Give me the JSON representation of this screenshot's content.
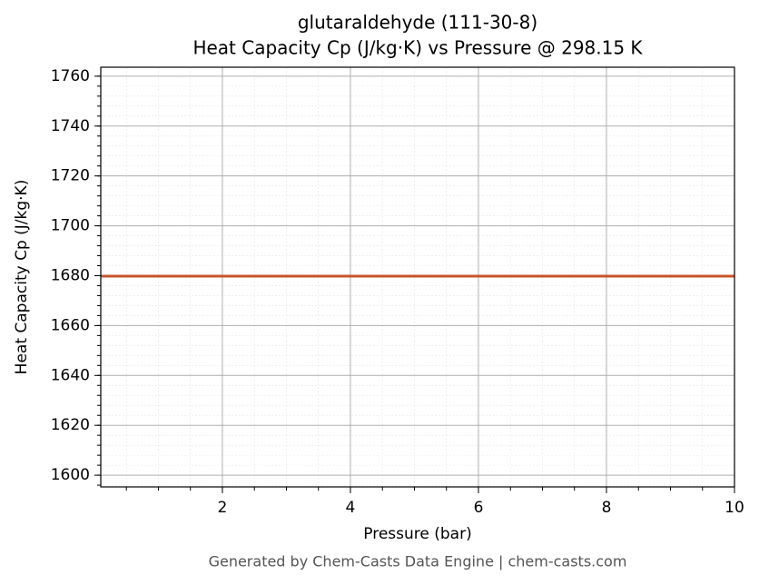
{
  "chart_data": {
    "type": "line",
    "title": "glutaraldehyde (111-30-8)",
    "subtitle": "Heat Capacity Cp (J/kg·K) vs Pressure @ 298.15 K",
    "x_label": "Pressure (bar)",
    "y_label": "Heat Capacity Cp (J/kg·K)",
    "footer": "Generated by Chem-Casts Data Engine | chem-casts.com",
    "x": [
      0.1,
      1,
      2,
      3,
      4,
      5,
      6,
      7,
      8,
      9,
      10
    ],
    "series": [
      {
        "name": "Cp",
        "color": "#c8552a",
        "values": [
          1679.8,
          1679.8,
          1679.8,
          1679.8,
          1679.8,
          1679.8,
          1679.8,
          1679.8,
          1679.8,
          1679.8,
          1679.8
        ]
      }
    ],
    "xlim": [
      0.1,
      10
    ],
    "ylim": [
      1595.3,
      1763.6
    ],
    "xticks": [
      2,
      4,
      6,
      8,
      10
    ],
    "yticks": [
      1600,
      1620,
      1640,
      1660,
      1680,
      1700,
      1720,
      1740,
      1760
    ],
    "grid": true,
    "minor_grid": true
  }
}
